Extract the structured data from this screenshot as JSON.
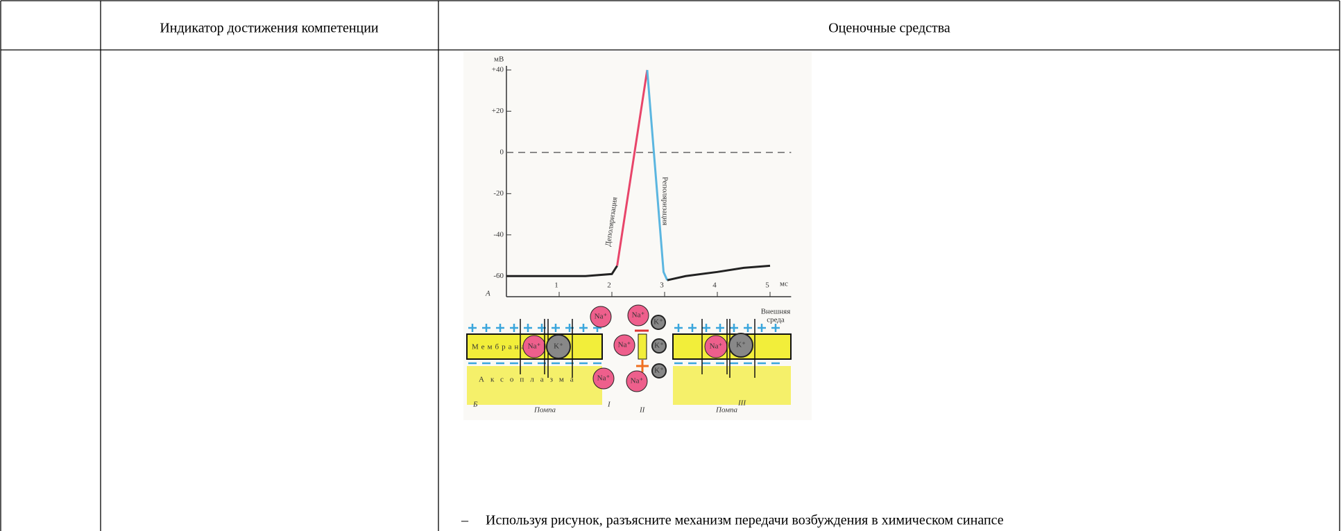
{
  "table": {
    "headers": [
      "Индикатор достижения компетенции",
      "Оценочные средства"
    ],
    "bullet": "–",
    "task": "Используя рисунок, разъясните механизм передачи возбуждения в химическом синапсе"
  },
  "figure": {
    "y_unit": "мВ",
    "x_unit": "мс",
    "panel_top": "А",
    "panel_bottom": "Б",
    "ylim": [
      -70,
      42
    ],
    "xlim": [
      0,
      5.4
    ],
    "yticks": [
      {
        "value": 40,
        "label": "+40"
      },
      {
        "value": 20,
        "label": "+20"
      },
      0,
      -20,
      -40,
      -60
    ],
    "xticks": [
      1,
      2,
      3,
      4,
      5
    ],
    "dashed_line_at": 0,
    "curves": [
      {
        "color": "#222222",
        "x": [
          0,
          1,
          1.5,
          2,
          2.1
        ],
        "y": [
          -60,
          -60,
          -60,
          -59,
          -55
        ]
      },
      {
        "color": "#e8456a",
        "x": [
          2.1,
          2.67
        ],
        "y": [
          -55,
          40
        ]
      },
      {
        "color": "#5bb6e0",
        "x": [
          2.67,
          2.98,
          3.05
        ],
        "y": [
          40,
          -58,
          -62
        ]
      },
      {
        "color": "#222222",
        "x": [
          3.05,
          3.4,
          4,
          4.5,
          5
        ],
        "y": [
          -62,
          -60,
          -58,
          -56,
          -55
        ]
      }
    ],
    "phases": [
      "Деполяризация",
      "Реполяризация"
    ],
    "outer": [
      "Внешняя",
      "среда"
    ],
    "membrane": "Мембрана",
    "axoplasm": "Аксоплазма",
    "na": "Na⁺",
    "k": "K⁺",
    "pump": "Помпа",
    "sections": [
      "I",
      "II",
      "III"
    ]
  }
}
